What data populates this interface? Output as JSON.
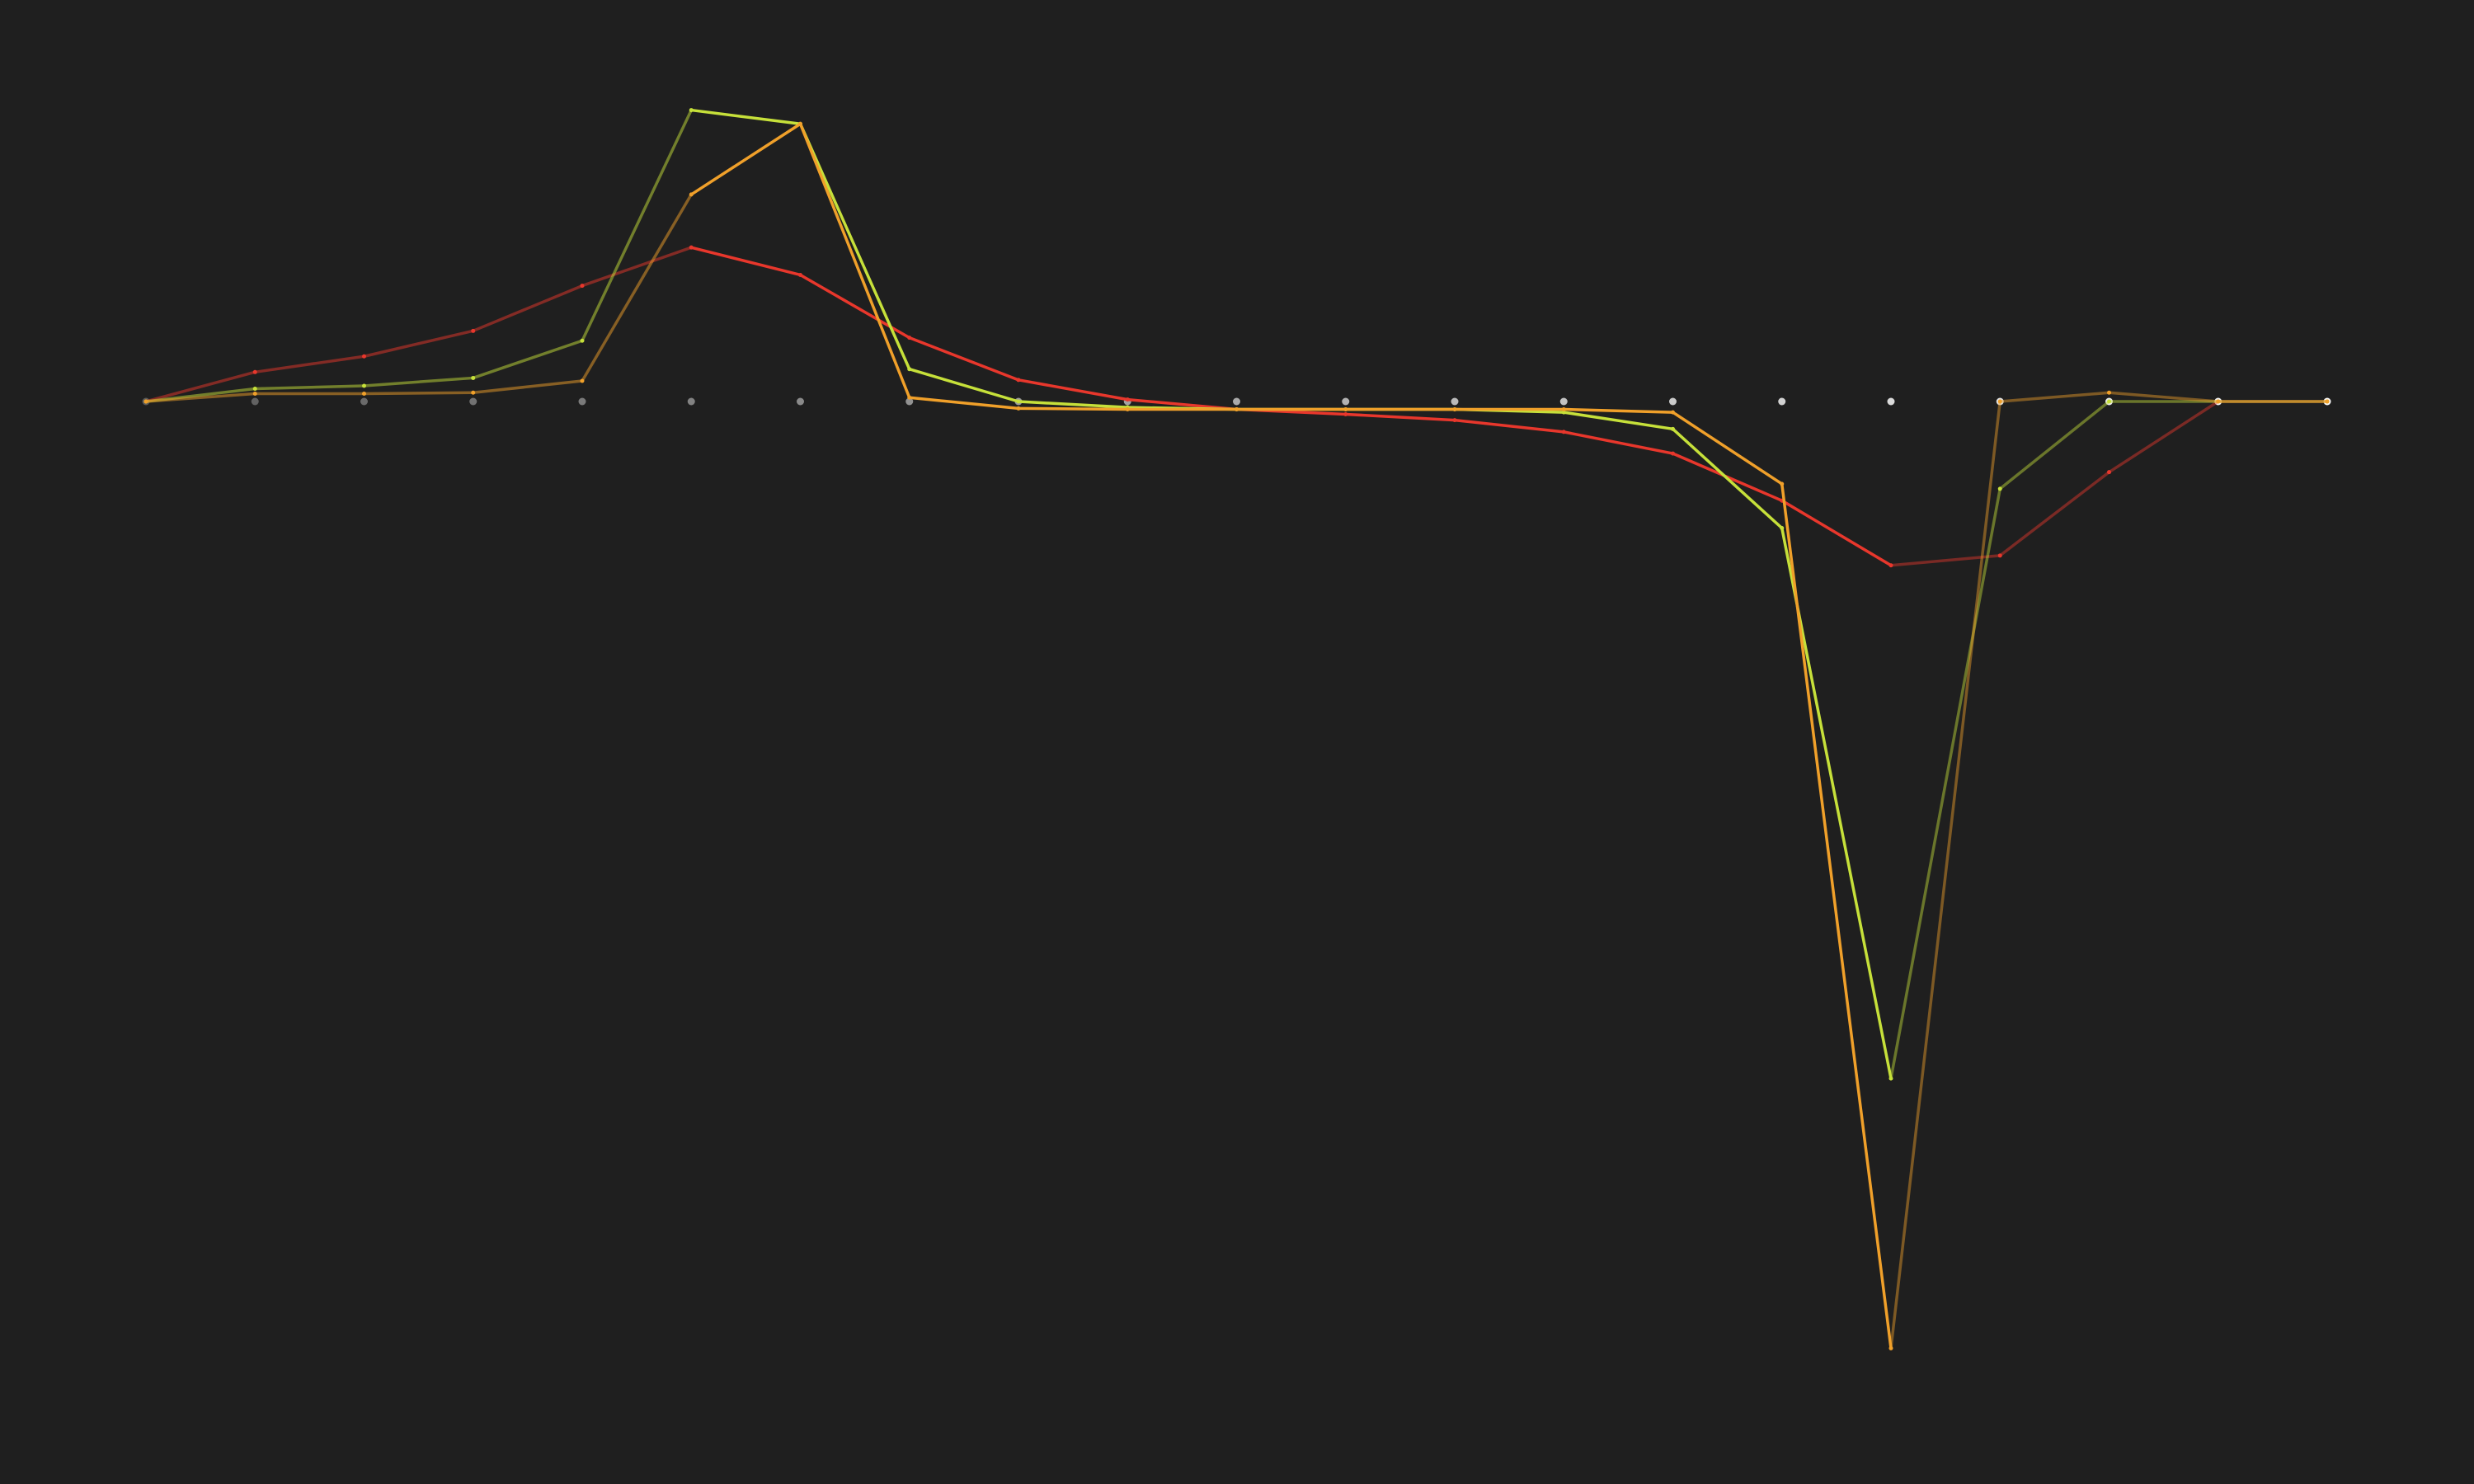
{
  "chart_data": {
    "type": "line",
    "title": "",
    "xlabel": "",
    "ylabel": "",
    "grid": false,
    "legend": "none",
    "x": [
      0,
      1,
      2,
      3,
      4,
      5,
      6,
      7,
      8,
      9,
      10,
      11,
      12,
      13,
      14,
      15,
      16,
      17,
      18,
      19,
      20
    ],
    "ylim": [
      -1.1,
      0.36
    ],
    "baseline_markers": true,
    "series": [
      {
        "color": "#e8372c",
        "values": [
          0,
          0.03,
          0.046,
          0.072,
          0.118,
          0.157,
          0.129,
          0.065,
          0.022,
          0.002,
          -0.008,
          -0.013,
          -0.019,
          -0.031,
          -0.053,
          -0.101,
          -0.167,
          -0.157,
          -0.072,
          0,
          0
        ]
      },
      {
        "color": "#c6e03a",
        "values": [
          0,
          0.013,
          0.016,
          0.024,
          0.062,
          0.297,
          0.283,
          0.033,
          0,
          -0.006,
          -0.008,
          -0.008,
          -0.008,
          -0.011,
          -0.028,
          -0.129,
          -0.69,
          -0.089,
          0,
          0,
          0
        ]
      },
      {
        "color": "#f0a02a",
        "values": [
          0,
          0.008,
          0.008,
          0.009,
          0.021,
          0.211,
          0.283,
          0.004,
          -0.007,
          -0.008,
          -0.008,
          -0.008,
          -0.008,
          -0.008,
          -0.011,
          -0.084,
          -0.965,
          0,
          0.009,
          0,
          0
        ]
      }
    ]
  }
}
